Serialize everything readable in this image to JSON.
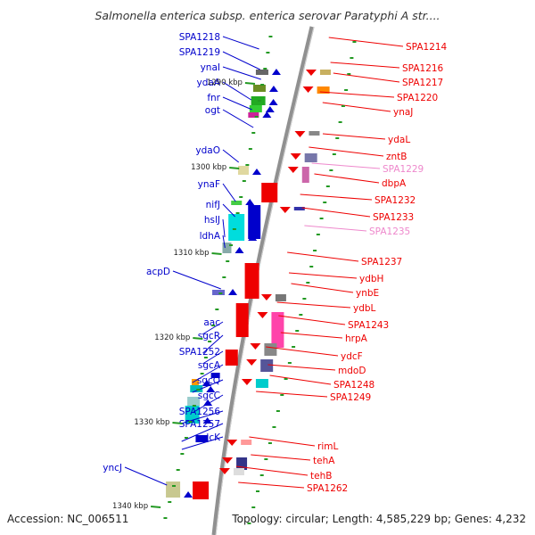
{
  "title": "Salmonella enterica subsp. enterica serovar Paratyphi A str....",
  "footer": {
    "accession": "Accession: NC_006511",
    "topology": "Topology: circular; Length: 4,585,229 bp; Genes: 4,232"
  },
  "colors": {
    "forward": "#0000cc",
    "reverse": "#ee0000",
    "pseudo": "#ee88cc",
    "backbone": "#808080",
    "tick": "#229922"
  },
  "ticks": [
    "1290 kbp",
    "1300 kbp",
    "1310 kbp",
    "1320 kbp",
    "1330 kbp",
    "1340 kbp"
  ],
  "left_labels": [
    "SPA1218",
    "SPA1219",
    "ynaI",
    "ydaA",
    "fnr",
    "ogt",
    "ydaO",
    "ynaF",
    "nifJ",
    "hslJ",
    "ldhA",
    "acpD",
    "aac",
    "sgcR",
    "SPA1252",
    "sgcA",
    "sgcQ",
    "sgcC",
    "SPA1256",
    "SPA1257",
    "ydcK",
    "yncJ"
  ],
  "right_labels": [
    "SPA1214",
    "SPA1216",
    "SPA1217",
    "SPA1220",
    "ynaJ",
    "ydaL",
    "zntB",
    "SPA1229",
    "dbpA",
    "SPA1232",
    "SPA1233",
    "SPA1235",
    "SPA1237",
    "ydbH",
    "ynbE",
    "ydbL",
    "SPA1243",
    "hrpA",
    "ydcF",
    "mdoD",
    "SPA1248",
    "SPA1249",
    "rimL",
    "tehA",
    "tehB",
    "SPA1262"
  ]
}
